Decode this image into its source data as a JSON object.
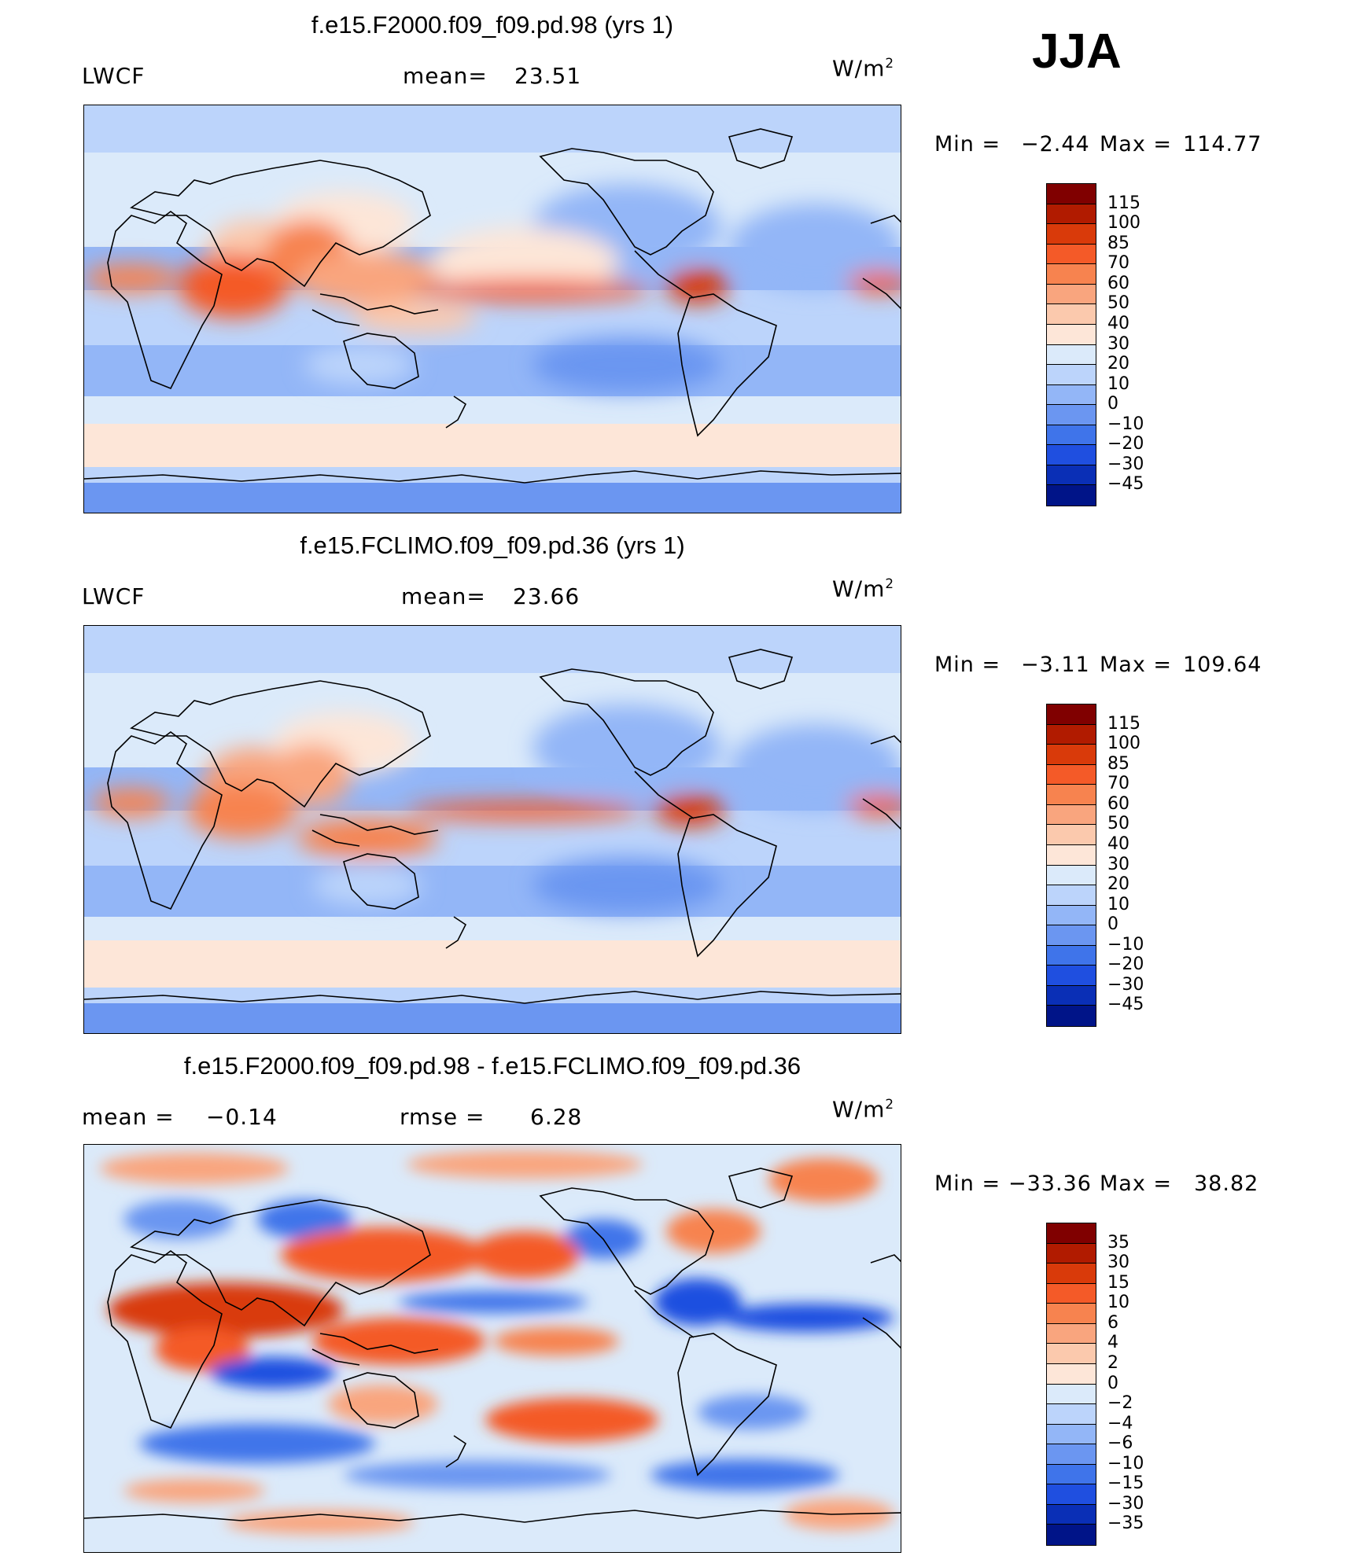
{
  "season": "JJA",
  "panels": [
    {
      "title": "f.e15.F2000.f09_f09.pd.98 (yrs 1)",
      "left_label": "LWCF",
      "center_label": "mean=",
      "center_value": "23.51",
      "units": "W/m",
      "units_sup": "2",
      "min_label": "Min =",
      "min_value": "−2.44",
      "max_label": "Max =",
      "max_value": "114.77",
      "levels": [
        "115",
        "100",
        "85",
        "70",
        "60",
        "50",
        "40",
        "30",
        "20",
        "10",
        "0",
        "−10",
        "−20",
        "−30",
        "−45"
      ],
      "colors": [
        "#800000",
        "#b11b00",
        "#d93a0a",
        "#f45a28",
        "#f7834f",
        "#f9a57e",
        "#fbc9ad",
        "#fde6d8",
        "#dbeafa",
        "#bcd4fb",
        "#93b6f7",
        "#6b96f1",
        "#3f74ea",
        "#1f4fe0",
        "#0a2fb6",
        "#001488"
      ]
    },
    {
      "title": "f.e15.FCLIMO.f09_f09.pd.36 (yrs 1)",
      "left_label": "LWCF",
      "center_label": "mean=",
      "center_value": "23.66",
      "units": "W/m",
      "units_sup": "2",
      "min_label": "Min =",
      "min_value": "−3.11",
      "max_label": "Max =",
      "max_value": "109.64",
      "levels": [
        "115",
        "100",
        "85",
        "70",
        "60",
        "50",
        "40",
        "30",
        "20",
        "10",
        "0",
        "−10",
        "−20",
        "−30",
        "−45"
      ],
      "colors": [
        "#800000",
        "#b11b00",
        "#d93a0a",
        "#f45a28",
        "#f7834f",
        "#f9a57e",
        "#fbc9ad",
        "#fde6d8",
        "#dbeafa",
        "#bcd4fb",
        "#93b6f7",
        "#6b96f1",
        "#3f74ea",
        "#1f4fe0",
        "#0a2fb6",
        "#001488"
      ]
    },
    {
      "title": "f.e15.F2000.f09_f09.pd.98 - f.e15.FCLIMO.f09_f09.pd.36",
      "left_label": "mean =",
      "left_value": "−0.14",
      "center_label": "rmse =",
      "center_value": "6.28",
      "units": "W/m",
      "units_sup": "2",
      "min_label": "Min =",
      "min_value": "−33.36",
      "max_label": "Max =",
      "max_value": "38.82",
      "levels": [
        "35",
        "30",
        "15",
        "10",
        "6",
        "4",
        "2",
        "0",
        "−2",
        "−4",
        "−6",
        "−10",
        "−15",
        "−30",
        "−35"
      ],
      "colors": [
        "#800000",
        "#b11b00",
        "#d93a0a",
        "#f45a28",
        "#f7834f",
        "#f9a57e",
        "#fbc9ad",
        "#fde6d8",
        "#dbeafa",
        "#bcd4fb",
        "#93b6f7",
        "#6b96f1",
        "#3f74ea",
        "#1f4fe0",
        "#0a2fb6",
        "#001488"
      ]
    }
  ]
}
